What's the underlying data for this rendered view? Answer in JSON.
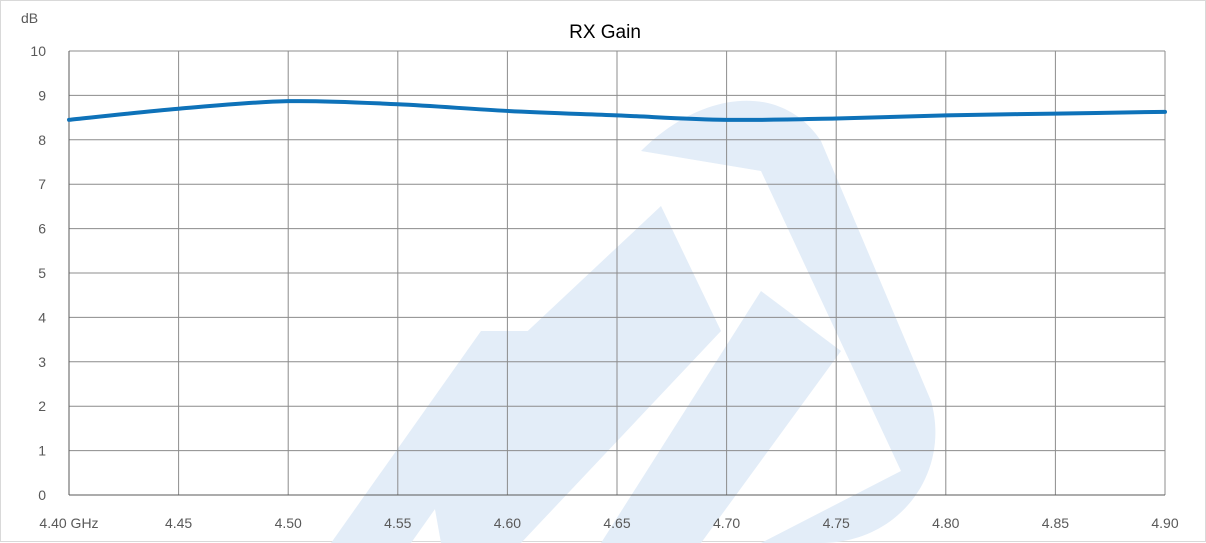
{
  "chart_data": {
    "type": "line",
    "title": "RX Gain",
    "ylabel": "dB",
    "xlabel": "",
    "x_tick_labels": [
      "4.40 GHz",
      "4.45",
      "4.50",
      "4.55",
      "4.60",
      "4.65",
      "4.70",
      "4.75",
      "4.80",
      "4.85",
      "4.90"
    ],
    "y_tick_labels": [
      "0",
      "1",
      "2",
      "3",
      "4",
      "5",
      "6",
      "7",
      "8",
      "9",
      "10"
    ],
    "xlim": [
      4.4,
      4.9
    ],
    "ylim": [
      0,
      10
    ],
    "grid": true,
    "x": [
      4.4,
      4.45,
      4.5,
      4.55,
      4.6,
      4.65,
      4.7,
      4.75,
      4.8,
      4.85,
      4.9
    ],
    "series": [
      {
        "values": [
          8.45,
          8.7,
          8.87,
          8.8,
          8.65,
          8.55,
          8.45,
          8.48,
          8.55,
          8.59,
          8.63
        ],
        "color": "#0e72b9"
      }
    ],
    "watermark_color": "#e3edf8"
  }
}
